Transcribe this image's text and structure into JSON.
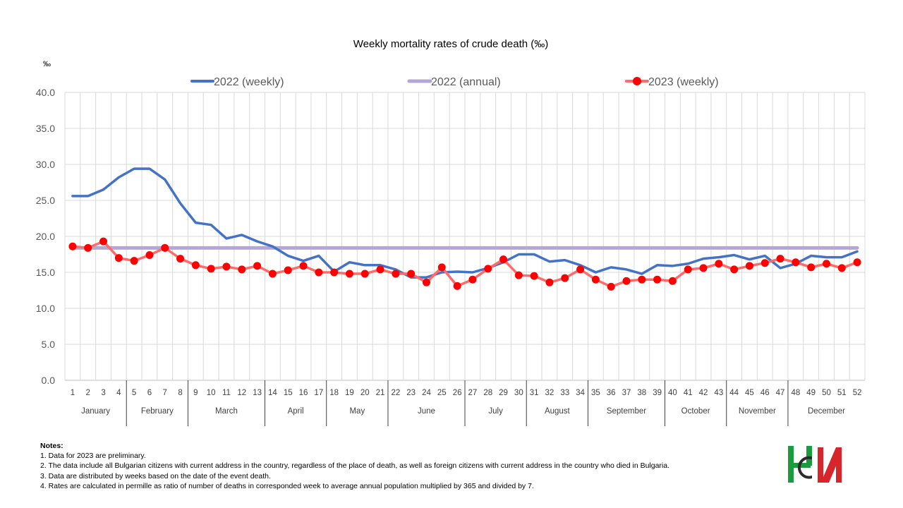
{
  "chart_data": {
    "type": "line",
    "title": "Weekly mortality rates of crude death (‰)",
    "ylabel": "‰",
    "xlabel": "",
    "ylim": [
      0,
      40
    ],
    "yticks": [
      "0.0",
      "5.0",
      "10.0",
      "15.0",
      "20.0",
      "25.0",
      "30.0",
      "35.0",
      "40.0"
    ],
    "x": [
      1,
      2,
      3,
      4,
      5,
      6,
      7,
      8,
      9,
      10,
      11,
      12,
      13,
      14,
      15,
      16,
      17,
      18,
      19,
      20,
      21,
      22,
      23,
      24,
      25,
      26,
      27,
      28,
      29,
      30,
      31,
      32,
      33,
      34,
      35,
      36,
      37,
      38,
      39,
      40,
      41,
      42,
      43,
      44,
      45,
      46,
      47,
      48,
      49,
      50,
      51,
      52
    ],
    "months": [
      {
        "name": "January",
        "start": 1,
        "end": 4
      },
      {
        "name": "February",
        "start": 5,
        "end": 8
      },
      {
        "name": "March",
        "start": 9,
        "end": 13
      },
      {
        "name": "April",
        "start": 14,
        "end": 17
      },
      {
        "name": "May",
        "start": 18,
        "end": 21
      },
      {
        "name": "June",
        "start": 22,
        "end": 26
      },
      {
        "name": "July",
        "start": 27,
        "end": 30
      },
      {
        "name": "August",
        "start": 31,
        "end": 34
      },
      {
        "name": "September",
        "start": 35,
        "end": 39
      },
      {
        "name": "October",
        "start": 40,
        "end": 43
      },
      {
        "name": "November",
        "start": 44,
        "end": 47
      },
      {
        "name": "December",
        "start": 48,
        "end": 52
      }
    ],
    "series": [
      {
        "name": "2022 (weekly)",
        "color": "#4472C4",
        "marker": false,
        "values": [
          25.6,
          25.6,
          26.5,
          28.2,
          29.4,
          29.4,
          27.9,
          24.6,
          21.9,
          21.6,
          19.7,
          20.2,
          19.3,
          18.6,
          17.3,
          16.6,
          17.3,
          15.1,
          16.4,
          16.0,
          16.0,
          15.4,
          14.3,
          14.3,
          15.0,
          15.1,
          15.0,
          15.6,
          16.4,
          17.5,
          17.5,
          16.5,
          16.7,
          16.0,
          15.0,
          15.7,
          15.4,
          14.8,
          16.0,
          15.9,
          16.2,
          16.9,
          17.1,
          17.4,
          16.8,
          17.3,
          15.6,
          16.2,
          17.3,
          17.1,
          17.1,
          17.9
        ]
      },
      {
        "name": "2022 (annual)",
        "color": "#B4A7D6",
        "marker": false,
        "values": [
          18.4,
          18.4,
          18.4,
          18.4,
          18.4,
          18.4,
          18.4,
          18.4,
          18.4,
          18.4,
          18.4,
          18.4,
          18.4,
          18.4,
          18.4,
          18.4,
          18.4,
          18.4,
          18.4,
          18.4,
          18.4,
          18.4,
          18.4,
          18.4,
          18.4,
          18.4,
          18.4,
          18.4,
          18.4,
          18.4,
          18.4,
          18.4,
          18.4,
          18.4,
          18.4,
          18.4,
          18.4,
          18.4,
          18.4,
          18.4,
          18.4,
          18.4,
          18.4,
          18.4,
          18.4,
          18.4,
          18.4,
          18.4,
          18.4,
          18.4,
          18.4,
          18.4
        ]
      },
      {
        "name": "2023 (weekly)",
        "color": "#FF6B6B",
        "markerColor": "#FF0000",
        "marker": true,
        "values": [
          18.6,
          18.4,
          19.3,
          17.0,
          16.6,
          17.4,
          18.4,
          16.9,
          16.0,
          15.5,
          15.8,
          15.4,
          15.9,
          14.8,
          15.3,
          15.9,
          15.0,
          15.0,
          14.8,
          14.8,
          15.4,
          14.8,
          14.8,
          13.6,
          15.7,
          13.1,
          14.0,
          15.5,
          16.8,
          14.6,
          14.5,
          13.6,
          14.2,
          15.4,
          14.0,
          13.0,
          13.8,
          14.0,
          14.0,
          13.8,
          15.4,
          15.6,
          16.2,
          15.4,
          15.9,
          16.3,
          16.9,
          16.4,
          15.7,
          16.2,
          15.6,
          16.4
        ]
      }
    ]
  },
  "notes": {
    "heading": "Notes:",
    "items": [
      "1. Data for 2023 are preliminary.",
      "2. The data include all Bulgarian citizens with current address in the country, regardless of the place of death, as well as foreign citizens with current address in the country who died in Bulgaria.",
      "3. Data are distributed by weeks based on the date of the event death.",
      "4. Rates are calculated in permille as ratio of number of deaths in corresponded week to average annual population multiplied by 365 and divided by 7."
    ]
  },
  "logo": {
    "alt": "НСИ"
  }
}
